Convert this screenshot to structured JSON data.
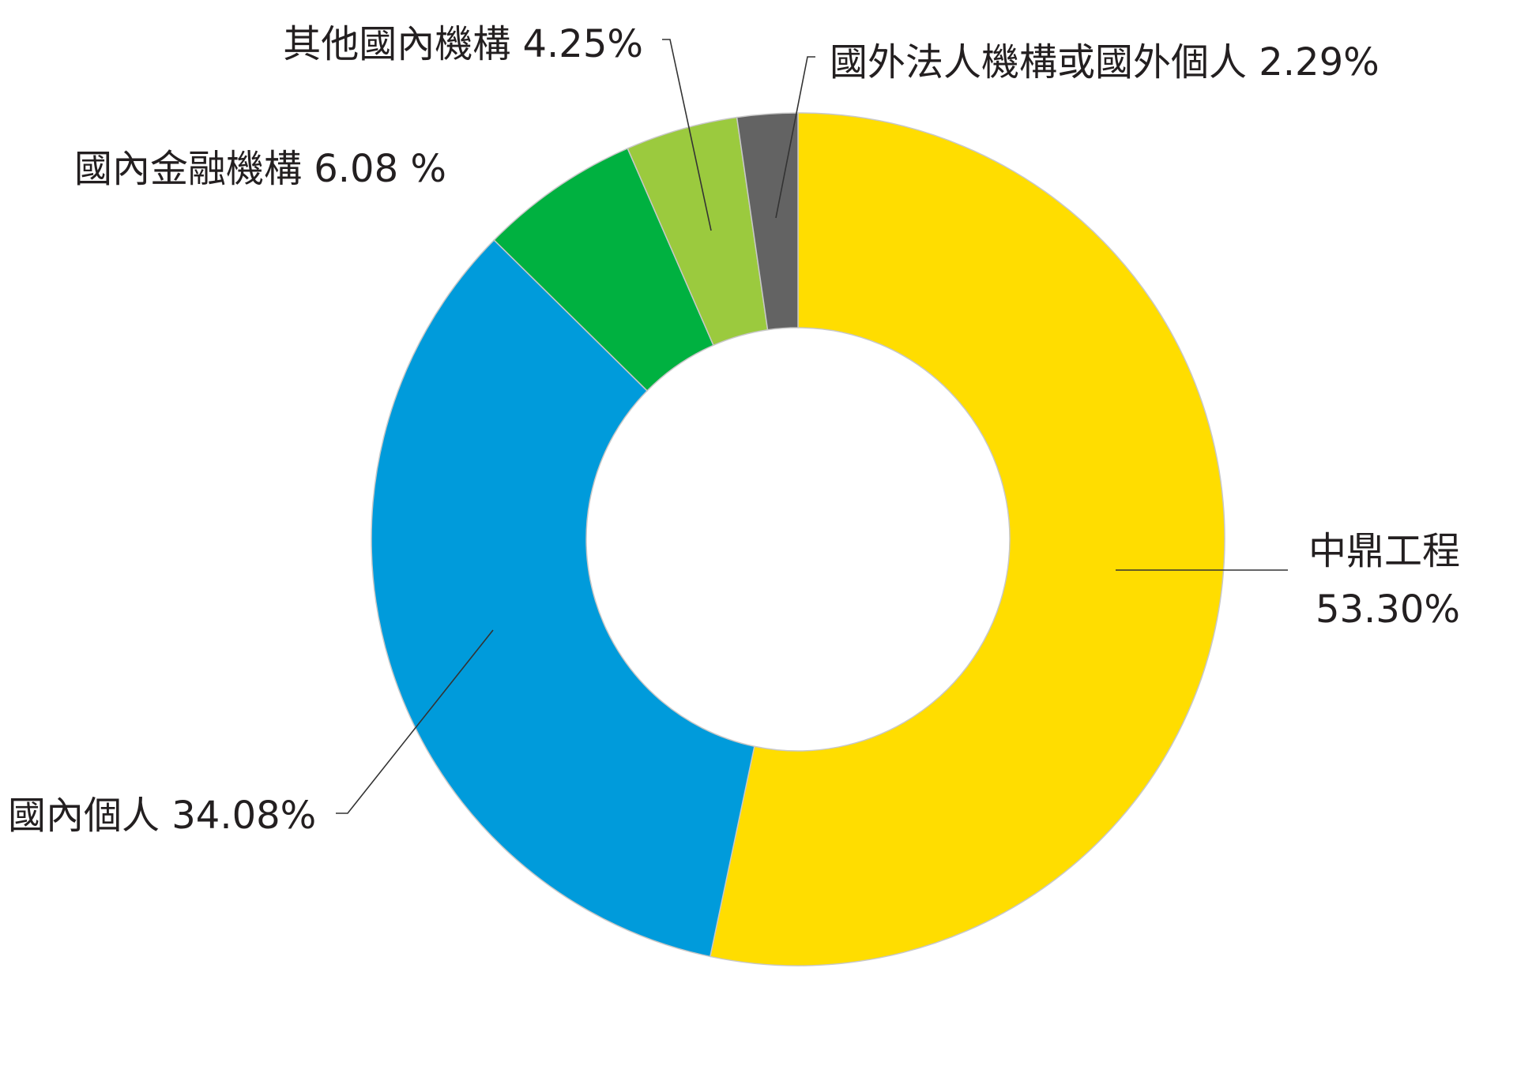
{
  "chart_data": {
    "type": "pie",
    "variant": "donut",
    "start_angle_deg": 0,
    "direction": "clockwise",
    "slices": [
      {
        "name": "中鼎工程",
        "value": 53.3,
        "label": "53.30%",
        "color": "#FFDD00"
      },
      {
        "name": "國內個人",
        "value": 34.08,
        "label": "34.08%",
        "color": "#009BDB"
      },
      {
        "name": "國內金融機構",
        "value": 6.08,
        "label": "6.08 %",
        "color": "#00B140"
      },
      {
        "name": "其他國內機構",
        "value": 4.25,
        "label": "4.25%",
        "color": "#9BCA3E"
      },
      {
        "name": "國外法人機構或國外個人",
        "value": 2.29,
        "label": "2.29%",
        "color": "#636363"
      }
    ]
  },
  "labels": {
    "zhongding_name": "中鼎工程",
    "zhongding_value": "53.30%",
    "domestic_individual": "國內個人 34.08%",
    "domestic_financial": "國內金融機構 6.08 %",
    "other_domestic": "其他國內機構 4.25%",
    "foreign": "國外法人機構或國外個人 2.29%"
  }
}
